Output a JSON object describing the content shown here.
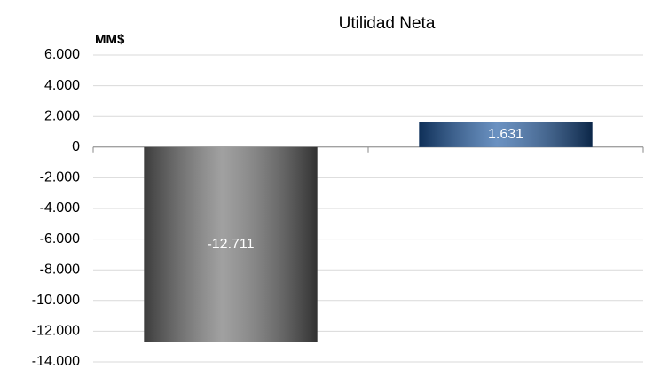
{
  "chart_data": {
    "type": "bar",
    "title": "Utilidad Neta",
    "y_label": "MM$",
    "categories": [
      null,
      null
    ],
    "values": [
      -12711,
      1631
    ],
    "value_labels": [
      "-12.711",
      "1.631"
    ],
    "colors": [
      "#6e6e6e",
      "#1a56a0"
    ],
    "ylim": [
      -14000,
      6000
    ],
    "yticks": [
      {
        "value": -14000,
        "label": "-14.000"
      },
      {
        "value": -12000,
        "label": "-12.000"
      },
      {
        "value": -10000,
        "label": "-10.000"
      },
      {
        "value": -8000,
        "label": "-8.000"
      },
      {
        "value": -6000,
        "label": "-6.000"
      },
      {
        "value": -4000,
        "label": "-4.000"
      },
      {
        "value": -2000,
        "label": "-2.000"
      },
      0,
      {
        "value": 2000,
        "label": "2.000"
      },
      {
        "value": 4000,
        "label": "4.000"
      },
      {
        "value": 6000,
        "label": "6.000"
      }
    ],
    "grid": true
  }
}
